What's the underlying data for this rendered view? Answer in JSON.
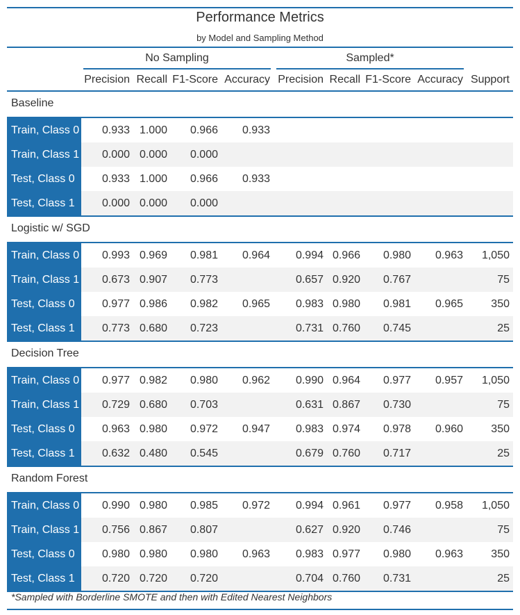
{
  "chart_data": {
    "type": "table",
    "title": "Performance Metrics",
    "subtitle": "by Model and Sampling Method",
    "spanners": [
      "No Sampling",
      "Sampled*"
    ],
    "columns": [
      "Precision",
      "Recall",
      "F1-Score",
      "Accuracy",
      "Precision",
      "Recall",
      "F1-Score",
      "Accuracy",
      "Support"
    ],
    "groups": [
      {
        "name": "Baseline",
        "rows": [
          {
            "label": "Train, Class 0",
            "values": [
              "0.933",
              "1.000",
              "0.966",
              "0.933",
              "",
              "",
              "",
              "",
              ""
            ]
          },
          {
            "label": "Train, Class 1",
            "values": [
              "0.000",
              "0.000",
              "0.000",
              "",
              "",
              "",
              "",
              "",
              ""
            ]
          },
          {
            "label": "Test, Class 0",
            "values": [
              "0.933",
              "1.000",
              "0.966",
              "0.933",
              "",
              "",
              "",
              "",
              ""
            ]
          },
          {
            "label": "Test, Class 1",
            "values": [
              "0.000",
              "0.000",
              "0.000",
              "",
              "",
              "",
              "",
              "",
              ""
            ]
          }
        ]
      },
      {
        "name": "Logistic w/ SGD",
        "rows": [
          {
            "label": "Train, Class 0",
            "values": [
              "0.993",
              "0.969",
              "0.981",
              "0.964",
              "0.994",
              "0.966",
              "0.980",
              "0.963",
              "1,050"
            ]
          },
          {
            "label": "Train, Class 1",
            "values": [
              "0.673",
              "0.907",
              "0.773",
              "",
              "0.657",
              "0.920",
              "0.767",
              "",
              "75"
            ]
          },
          {
            "label": "Test, Class 0",
            "values": [
              "0.977",
              "0.986",
              "0.982",
              "0.965",
              "0.983",
              "0.980",
              "0.981",
              "0.965",
              "350"
            ]
          },
          {
            "label": "Test, Class 1",
            "values": [
              "0.773",
              "0.680",
              "0.723",
              "",
              "0.731",
              "0.760",
              "0.745",
              "",
              "25"
            ]
          }
        ]
      },
      {
        "name": "Decision Tree",
        "rows": [
          {
            "label": "Train, Class 0",
            "values": [
              "0.977",
              "0.982",
              "0.980",
              "0.962",
              "0.990",
              "0.964",
              "0.977",
              "0.957",
              "1,050"
            ]
          },
          {
            "label": "Train, Class 1",
            "values": [
              "0.729",
              "0.680",
              "0.703",
              "",
              "0.631",
              "0.867",
              "0.730",
              "",
              "75"
            ]
          },
          {
            "label": "Test, Class 0",
            "values": [
              "0.963",
              "0.980",
              "0.972",
              "0.947",
              "0.983",
              "0.974",
              "0.978",
              "0.960",
              "350"
            ]
          },
          {
            "label": "Test, Class 1",
            "values": [
              "0.632",
              "0.480",
              "0.545",
              "",
              "0.679",
              "0.760",
              "0.717",
              "",
              "25"
            ]
          }
        ]
      },
      {
        "name": "Random Forest",
        "rows": [
          {
            "label": "Train, Class 0",
            "values": [
              "0.990",
              "0.980",
              "0.985",
              "0.972",
              "0.994",
              "0.961",
              "0.977",
              "0.958",
              "1,050"
            ]
          },
          {
            "label": "Train, Class 1",
            "values": [
              "0.756",
              "0.867",
              "0.807",
              "",
              "0.627",
              "0.920",
              "0.746",
              "",
              "75"
            ]
          },
          {
            "label": "Test, Class 0",
            "values": [
              "0.980",
              "0.980",
              "0.980",
              "0.963",
              "0.983",
              "0.977",
              "0.980",
              "0.963",
              "350"
            ]
          },
          {
            "label": "Test, Class 1",
            "values": [
              "0.720",
              "0.720",
              "0.720",
              "",
              "0.704",
              "0.760",
              "0.731",
              "",
              "25"
            ]
          }
        ]
      }
    ],
    "footnote": "*Sampled with Borderline SMOTE and then with Edited Nearest Neighbors",
    "colors": {
      "accent": "#1f6fad",
      "stripe": "#f2f2f2",
      "text": "#333333"
    }
  }
}
